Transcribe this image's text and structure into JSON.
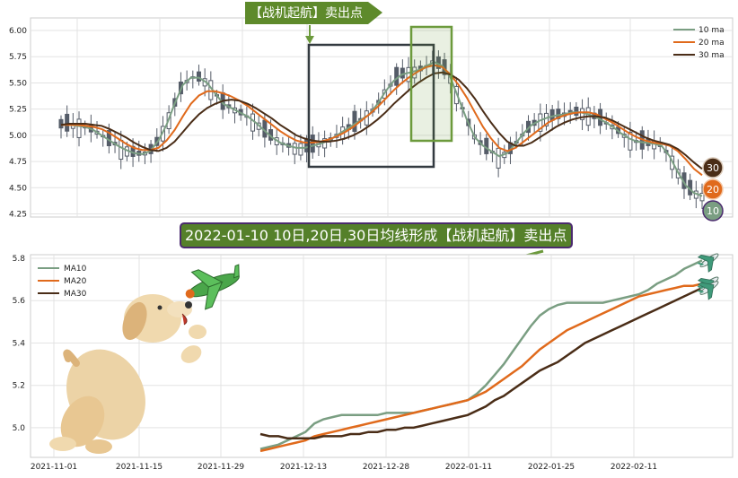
{
  "colors": {
    "ma10": "#7a9e82",
    "ma20": "#e06a1c",
    "ma30": "#4a2d17",
    "candle": "#555c68",
    "flag_bg": "#5e8a2b",
    "banner_bg": "#55802a",
    "banner_border": "#4b2a6e",
    "box_dark": "#333a40",
    "box_green": "#6c9a3c"
  },
  "top_flag": {
    "label": "【战机起航】卖出点"
  },
  "banner": {
    "label": "2022-01-10 10日,20日,30日均线形成【战机起航】卖出点"
  },
  "badges": {
    "ma30": "30",
    "ma20": "20",
    "ma10": "10"
  },
  "decorations": [
    "dog-illustration",
    "green-airplane-toy",
    "airplane-icons"
  ],
  "chart_data": [
    {
      "type": "line",
      "subtype": "candlestick-with-moving-averages",
      "ylim": [
        4.22,
        6.12
      ],
      "yticks": [
        "6.00",
        "5.75",
        "5.50",
        "5.25",
        "5.00",
        "4.75",
        "4.50",
        "4.25"
      ],
      "grid": true,
      "legend": {
        "position": "top-right",
        "entries": [
          "10 ma",
          "20 ma",
          "30 ma"
        ]
      },
      "x_range_trading_days": 108,
      "series": [
        {
          "name": "10 ma",
          "values": [
            5.1,
            5.1,
            5.09,
            5.08,
            5.05,
            5.0,
            4.95,
            4.9,
            4.86,
            4.83,
            4.82,
            4.85,
            4.95,
            5.1,
            5.3,
            5.48,
            5.55,
            5.55,
            5.5,
            5.4,
            5.3,
            5.26,
            5.22,
            5.18,
            5.12,
            5.05,
            4.98,
            4.93,
            4.9,
            4.88,
            4.88,
            4.9,
            4.92,
            4.95,
            5.0,
            5.05,
            5.1,
            5.15,
            5.2,
            5.3,
            5.42,
            5.52,
            5.58,
            5.6,
            5.62,
            5.66,
            5.7,
            5.66,
            5.55,
            5.35,
            5.15,
            4.98,
            4.9,
            4.85,
            4.8,
            4.83,
            4.92,
            5.02,
            5.1,
            5.14,
            5.17,
            5.19,
            5.2,
            5.22,
            5.22,
            5.2,
            5.17,
            5.13,
            5.08,
            5.02,
            4.97,
            4.94,
            4.93,
            4.92,
            4.9,
            4.8,
            4.65,
            4.52,
            4.45,
            4.42
          ]
        },
        {
          "name": "20 ma",
          "values": [
            5.1,
            5.1,
            5.1,
            5.09,
            5.08,
            5.06,
            5.02,
            4.97,
            4.92,
            4.88,
            4.86,
            4.86,
            4.88,
            4.95,
            5.05,
            5.18,
            5.3,
            5.38,
            5.42,
            5.42,
            5.4,
            5.37,
            5.33,
            5.28,
            5.22,
            5.16,
            5.1,
            5.04,
            4.99,
            4.95,
            4.93,
            4.93,
            4.94,
            4.96,
            4.99,
            5.03,
            5.08,
            5.14,
            5.2,
            5.27,
            5.35,
            5.43,
            5.5,
            5.56,
            5.61,
            5.65,
            5.67,
            5.65,
            5.58,
            5.48,
            5.36,
            5.22,
            5.08,
            4.97,
            4.88,
            4.85,
            4.88,
            4.94,
            5.0,
            5.06,
            5.12,
            5.16,
            5.19,
            5.21,
            5.22,
            5.22,
            5.2,
            5.16,
            5.12,
            5.07,
            5.02,
            4.98,
            4.95,
            4.93,
            4.92,
            4.9,
            4.85,
            4.77,
            4.68,
            4.62
          ]
        },
        {
          "name": "30 ma",
          "values": [
            5.1,
            5.11,
            5.11,
            5.11,
            5.1,
            5.09,
            5.06,
            5.02,
            4.98,
            4.93,
            4.89,
            4.86,
            4.85,
            4.88,
            4.94,
            5.03,
            5.12,
            5.2,
            5.26,
            5.3,
            5.33,
            5.34,
            5.33,
            5.3,
            5.26,
            5.21,
            5.16,
            5.1,
            5.05,
            5.0,
            4.97,
            4.95,
            4.94,
            4.94,
            4.95,
            4.97,
            5.0,
            5.04,
            5.09,
            5.15,
            5.22,
            5.3,
            5.37,
            5.44,
            5.5,
            5.55,
            5.59,
            5.6,
            5.58,
            5.53,
            5.45,
            5.35,
            5.23,
            5.12,
            5.02,
            4.94,
            4.9,
            4.9,
            4.93,
            4.98,
            5.03,
            5.08,
            5.12,
            5.15,
            5.17,
            5.18,
            5.18,
            5.17,
            5.14,
            5.1,
            5.06,
            5.02,
            4.98,
            4.95,
            4.93,
            4.91,
            4.87,
            4.81,
            4.74,
            4.68
          ]
        }
      ]
    },
    {
      "type": "line",
      "ylim": [
        4.86,
        5.8
      ],
      "yticks": [
        "5.8",
        "5.6",
        "5.4",
        "5.2",
        "5.0"
      ],
      "xticks": [
        "2021-11-01",
        "2021-11-15",
        "2021-11-29",
        "2021-12-13",
        "2021-12-28",
        "2022-01-11",
        "2022-01-25",
        "2022-02-11"
      ],
      "grid": true,
      "legend": {
        "position": "top-left",
        "entries": [
          "MA10",
          "MA20",
          "MA30"
        ]
      },
      "series": [
        {
          "name": "MA10",
          "values": [
            4.9,
            4.91,
            4.92,
            4.94,
            4.96,
            4.98,
            5.02,
            5.04,
            5.05,
            5.06,
            5.06,
            5.06,
            5.06,
            5.06,
            5.07,
            5.07,
            5.07,
            5.07,
            5.08,
            5.09,
            5.1,
            5.11,
            5.12,
            5.13,
            5.16,
            5.2,
            5.25,
            5.3,
            5.36,
            5.42,
            5.48,
            5.53,
            5.56,
            5.58,
            5.59,
            5.59,
            5.59,
            5.59,
            5.59,
            5.6,
            5.61,
            5.62,
            5.63,
            5.65,
            5.68,
            5.7,
            5.72,
            5.75,
            5.77,
            5.79
          ]
        },
        {
          "name": "MA20",
          "values": [
            4.89,
            4.9,
            4.91,
            4.92,
            4.93,
            4.94,
            4.96,
            4.97,
            4.98,
            4.99,
            5.0,
            5.01,
            5.02,
            5.03,
            5.04,
            5.05,
            5.06,
            5.07,
            5.08,
            5.09,
            5.1,
            5.11,
            5.12,
            5.13,
            5.15,
            5.17,
            5.2,
            5.23,
            5.26,
            5.29,
            5.33,
            5.37,
            5.4,
            5.43,
            5.46,
            5.48,
            5.5,
            5.52,
            5.54,
            5.56,
            5.58,
            5.6,
            5.62,
            5.63,
            5.64,
            5.65,
            5.66,
            5.67,
            5.67,
            5.68
          ]
        },
        {
          "name": "MA30",
          "values": [
            4.97,
            4.96,
            4.96,
            4.95,
            4.95,
            4.95,
            4.95,
            4.96,
            4.96,
            4.96,
            4.97,
            4.97,
            4.98,
            4.98,
            4.99,
            4.99,
            5.0,
            5.0,
            5.01,
            5.02,
            5.03,
            5.04,
            5.05,
            5.06,
            5.08,
            5.1,
            5.13,
            5.15,
            5.18,
            5.21,
            5.24,
            5.27,
            5.29,
            5.31,
            5.34,
            5.37,
            5.4,
            5.42,
            5.44,
            5.46,
            5.48,
            5.5,
            5.52,
            5.54,
            5.56,
            5.58,
            5.6,
            5.62,
            5.64,
            5.66
          ]
        }
      ]
    }
  ]
}
